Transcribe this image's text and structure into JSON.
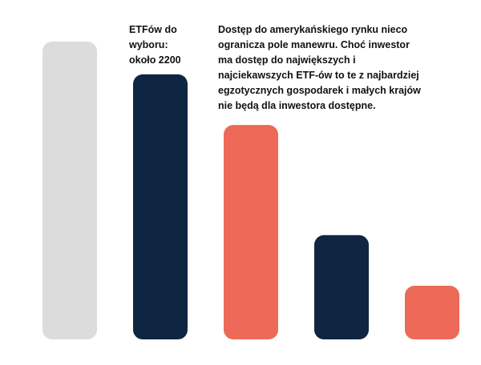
{
  "labels": {
    "etf_count": "ETFów do\nwyboru:\nokoło 2200",
    "note": "Dostęp do amerykańskiego rynku nieco\nogranicza pole manewru. Choć inwestor\nma dostęp do największych i\nnajciekawszych ETF-ów to te z najbardziej\negzotycznych gospodarek i małych krajów\nnie będą dla inwestora dostępne."
  },
  "colors": {
    "light_gray": "#dcdcdc",
    "navy": "#0f2642",
    "coral": "#ec6a57"
  },
  "chart_data": {
    "type": "bar",
    "categories": [
      "",
      "",
      "",
      "",
      ""
    ],
    "values": [
      100,
      89,
      72,
      35,
      18
    ],
    "bar_colors": [
      "#dcdcdc",
      "#0f2642",
      "#ec6a57",
      "#0f2642",
      "#ec6a57"
    ],
    "title": "",
    "xlabel": "",
    "ylabel": "",
    "ylim": [
      0,
      100
    ],
    "grid": false,
    "legend": "none"
  }
}
